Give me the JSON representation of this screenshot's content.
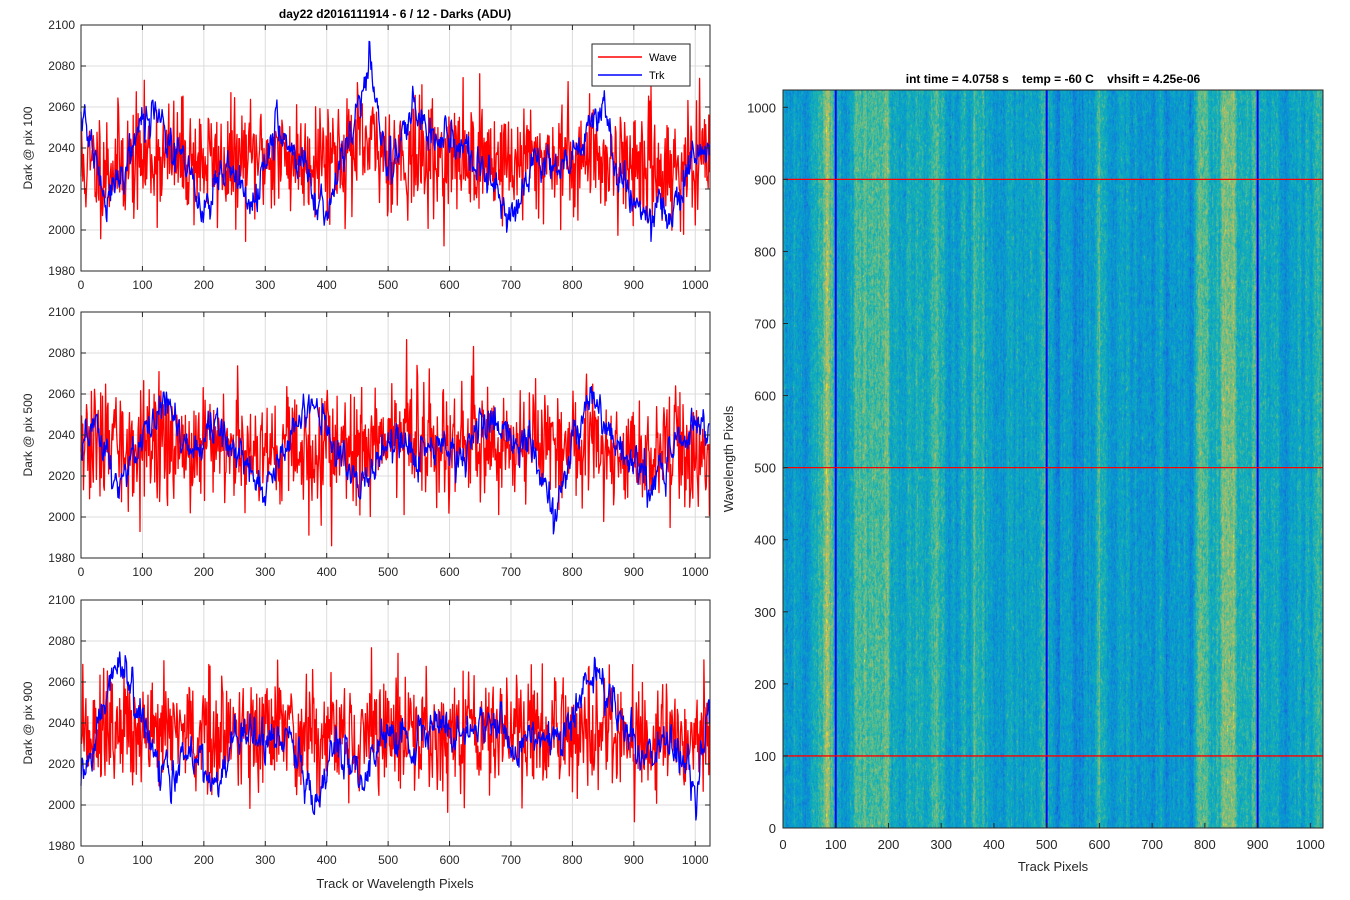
{
  "figure": {
    "background": "#ffffff"
  },
  "chart_data": [
    {
      "id": "dark-100",
      "type": "line",
      "title": "day22 d2016111914 - 6 / 12 - Darks (ADU)",
      "xlabel": "",
      "ylabel": "Dark @ pix 100",
      "xlim": [
        0,
        1024
      ],
      "ylim": [
        1980,
        2100
      ],
      "xticks": [
        0,
        100,
        200,
        300,
        400,
        500,
        600,
        700,
        800,
        900,
        1000
      ],
      "yticks": [
        1980,
        2000,
        2020,
        2040,
        2060,
        2080,
        2100
      ],
      "grid": true,
      "legend": {
        "position": "top-right",
        "entries": [
          "Wave",
          "Trk"
        ]
      },
      "series": [
        {
          "name": "Wave",
          "color": "#ff0000",
          "mean": 2035,
          "noise": 14,
          "seed": 11,
          "x": [
            0,
            1023
          ],
          "anchors_x": [
            0,
            60,
            120,
            180,
            240,
            300,
            360,
            420,
            470,
            520,
            580,
            640,
            700,
            760,
            820,
            880,
            940,
            1000,
            1023
          ],
          "anchors_y": [
            2030,
            2032,
            2036,
            2034,
            2032,
            2036,
            2035,
            2038,
            2040,
            2036,
            2034,
            2036,
            2033,
            2035,
            2036,
            2034,
            2030,
            2030,
            2032
          ]
        },
        {
          "name": "Trk",
          "color": "#0000ff",
          "mean": 2032,
          "noise": 4,
          "seed": 21,
          "x": [
            0,
            1023
          ],
          "anchors_x": [
            0,
            10,
            40,
            80,
            120,
            160,
            200,
            240,
            280,
            320,
            360,
            400,
            440,
            470,
            500,
            540,
            580,
            620,
            660,
            700,
            740,
            780,
            820,
            850,
            880,
            920,
            960,
            1000,
            1023
          ],
          "anchors_y": [
            2055,
            2050,
            2012,
            2040,
            2060,
            2035,
            2010,
            2030,
            2015,
            2050,
            2030,
            2010,
            2050,
            2080,
            2030,
            2060,
            2045,
            2040,
            2025,
            2005,
            2035,
            2032,
            2045,
            2060,
            2025,
            2005,
            2010,
            2030,
            2045
          ]
        }
      ]
    },
    {
      "id": "dark-500",
      "type": "line",
      "title": "",
      "xlabel": "",
      "ylabel": "Dark @ pix 500",
      "xlim": [
        0,
        1024
      ],
      "ylim": [
        1980,
        2100
      ],
      "xticks": [
        0,
        100,
        200,
        300,
        400,
        500,
        600,
        700,
        800,
        900,
        1000
      ],
      "yticks": [
        1980,
        2000,
        2020,
        2040,
        2060,
        2080,
        2100
      ],
      "grid": true,
      "series": [
        {
          "name": "Wave",
          "color": "#ff0000",
          "mean": 2035,
          "noise": 14,
          "seed": 33,
          "x": [
            0,
            1023
          ],
          "anchors_x": [
            0,
            100,
            200,
            300,
            400,
            500,
            600,
            700,
            800,
            900,
            1023
          ],
          "anchors_y": [
            2035,
            2034,
            2036,
            2035,
            2034,
            2036,
            2036,
            2037,
            2035,
            2030,
            2032
          ]
        },
        {
          "name": "Trk",
          "color": "#0000ff",
          "mean": 2032,
          "noise": 4,
          "seed": 44,
          "x": [
            0,
            1023
          ],
          "anchors_x": [
            0,
            20,
            60,
            100,
            140,
            180,
            220,
            260,
            300,
            340,
            380,
            420,
            460,
            500,
            540,
            580,
            620,
            660,
            700,
            740,
            770,
            800,
            830,
            860,
            900,
            940,
            980,
            1023
          ],
          "anchors_y": [
            2030,
            2045,
            2015,
            2040,
            2055,
            2030,
            2050,
            2030,
            2010,
            2040,
            2055,
            2030,
            2015,
            2040,
            2030,
            2035,
            2030,
            2045,
            2040,
            2030,
            2000,
            2035,
            2058,
            2040,
            2025,
            2015,
            2040,
            2045
          ]
        }
      ]
    },
    {
      "id": "dark-900",
      "type": "line",
      "title": "",
      "xlabel": "Track or Wavelength Pixels",
      "ylabel": "Dark @ pix 900",
      "xlim": [
        0,
        1024
      ],
      "ylim": [
        1980,
        2100
      ],
      "xticks": [
        0,
        100,
        200,
        300,
        400,
        500,
        600,
        700,
        800,
        900,
        1000
      ],
      "yticks": [
        1980,
        2000,
        2020,
        2040,
        2060,
        2080,
        2100
      ],
      "grid": true,
      "series": [
        {
          "name": "Wave",
          "color": "#ff0000",
          "mean": 2035,
          "noise": 14,
          "seed": 55,
          "x": [
            0,
            1023
          ],
          "anchors_x": [
            0,
            100,
            200,
            300,
            400,
            500,
            600,
            700,
            800,
            900,
            1023
          ],
          "anchors_y": [
            2035,
            2034,
            2034,
            2036,
            2035,
            2037,
            2036,
            2035,
            2037,
            2030,
            2030
          ]
        },
        {
          "name": "Trk",
          "color": "#0000ff",
          "mean": 2032,
          "noise": 4,
          "seed": 66,
          "x": [
            0,
            1023
          ],
          "anchors_x": [
            0,
            20,
            60,
            100,
            140,
            180,
            220,
            260,
            300,
            340,
            380,
            420,
            460,
            500,
            540,
            580,
            620,
            660,
            700,
            740,
            780,
            820,
            840,
            880,
            920,
            960,
            1000,
            1023
          ],
          "anchors_y": [
            2010,
            2030,
            2070,
            2040,
            2010,
            2030,
            2005,
            2040,
            2030,
            2035,
            2000,
            2030,
            2010,
            2040,
            2025,
            2040,
            2030,
            2040,
            2030,
            2035,
            2030,
            2055,
            2065,
            2040,
            2025,
            2030,
            2010,
            2045
          ]
        }
      ]
    },
    {
      "id": "dark-image",
      "type": "heatmap",
      "title": "int time = 4.0758 s    temp = -60 C    vhsift = 4.25e-06",
      "xlabel": "Track Pixels",
      "ylabel": "Wavelength Pixels",
      "xlim": [
        0,
        1024
      ],
      "ylim": [
        0,
        1024
      ],
      "xticks": [
        0,
        100,
        200,
        300,
        400,
        500,
        600,
        700,
        800,
        900,
        1000
      ],
      "yticks": [
        0,
        100,
        200,
        300,
        400,
        500,
        600,
        700,
        800,
        900,
        1000
      ],
      "colormap": "parula",
      "value_range": [
        1980,
        2100
      ],
      "mean": 2035,
      "marker_lines": {
        "vertical_track_pixels": [
          100,
          500,
          900
        ],
        "vertical_color": "#0000ff",
        "horizontal_wavelength_pixels": [
          100,
          500,
          900
        ],
        "horizontal_color": "#ff0000"
      }
    }
  ]
}
